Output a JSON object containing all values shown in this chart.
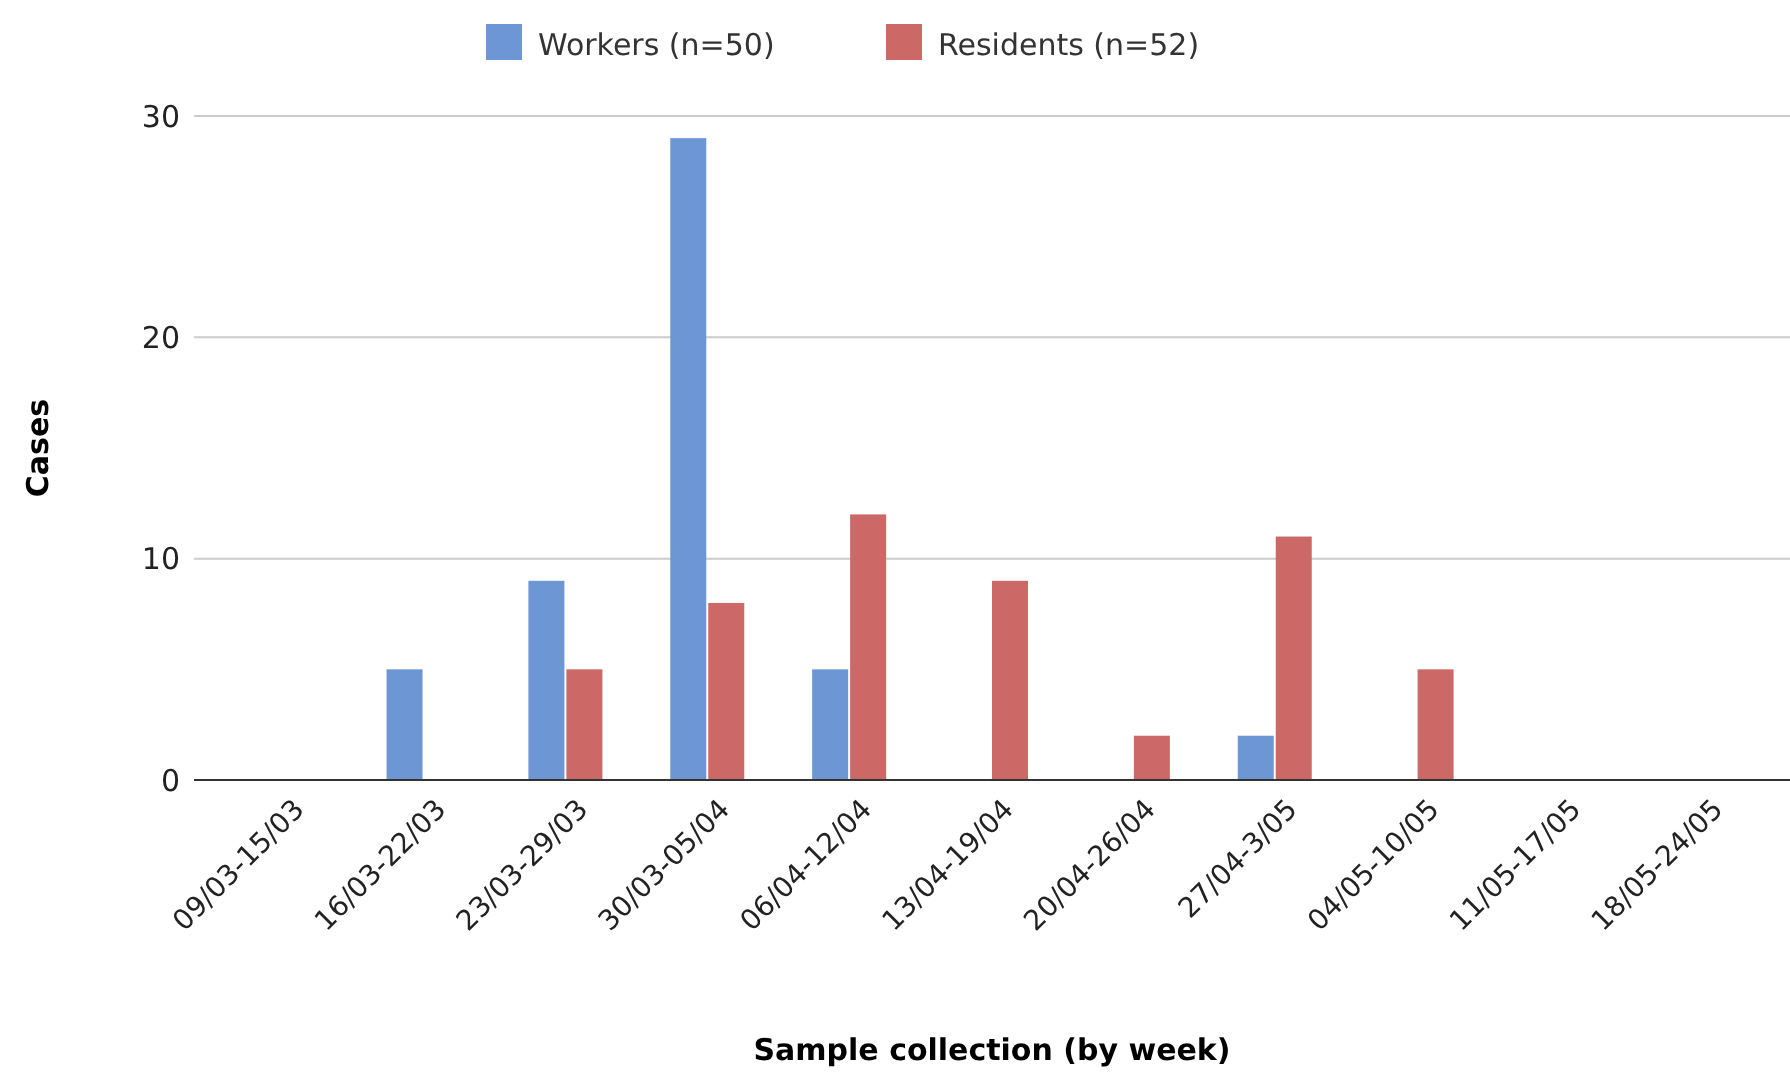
{
  "chart_data": {
    "type": "bar",
    "xlabel": "Sample collection (by week)",
    "ylabel": "Cases",
    "categories": [
      "09/03-15/03",
      "16/03-22/03",
      "23/03-29/03",
      "30/03-05/04",
      "06/04-12/04",
      "13/04-19/04",
      "20/04-26/04",
      "27/04-3/05",
      "04/05-10/05",
      "11/05-17/05",
      "18/05-24/05"
    ],
    "series": [
      {
        "name": "Workers (n=50)",
        "color": "#6d97d4",
        "values": [
          0,
          5,
          9,
          29,
          5,
          0,
          0,
          2,
          0,
          0,
          0
        ]
      },
      {
        "name": "Residents (n=52)",
        "color": "#cc6966",
        "values": [
          0,
          0,
          5,
          8,
          12,
          9,
          2,
          11,
          5,
          0,
          0
        ]
      }
    ],
    "ylim": [
      0,
      30
    ],
    "yticks": [
      0,
      10,
      20,
      30
    ],
    "grid": "y",
    "legend": "top"
  }
}
